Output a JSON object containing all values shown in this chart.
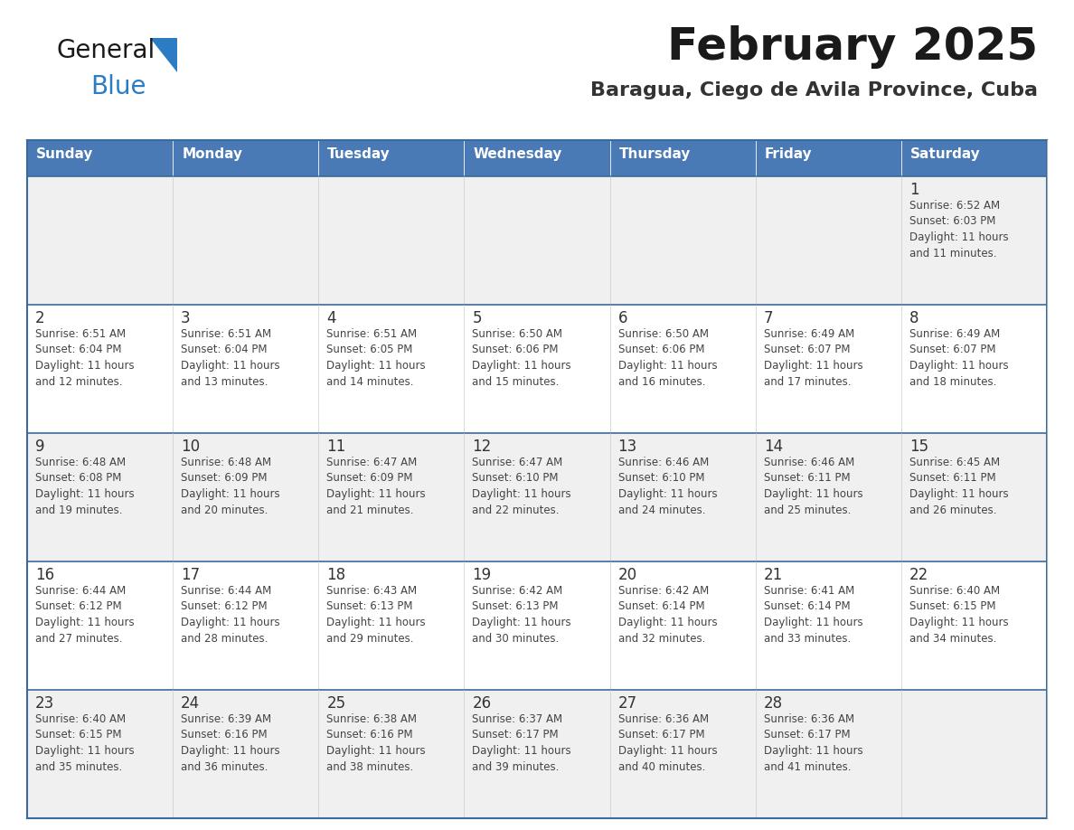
{
  "title": "February 2025",
  "subtitle": "Baragua, Ciego de Avila Province, Cuba",
  "days_of_week": [
    "Sunday",
    "Monday",
    "Tuesday",
    "Wednesday",
    "Thursday",
    "Friday",
    "Saturday"
  ],
  "header_bg": "#4a7ab5",
  "header_text": "#ffffff",
  "cell_bg_odd": "#f0f0f0",
  "cell_bg_even": "#ffffff",
  "divider_color": "#3a6a9a",
  "text_color": "#444444",
  "day_num_color": "#333333",
  "title_color": "#1a1a1a",
  "subtitle_color": "#333333",
  "logo_general_color": "#1a1a1a",
  "logo_blue_color": "#2b7cc2",
  "weeks": [
    [
      {
        "day": null,
        "info": ""
      },
      {
        "day": null,
        "info": ""
      },
      {
        "day": null,
        "info": ""
      },
      {
        "day": null,
        "info": ""
      },
      {
        "day": null,
        "info": ""
      },
      {
        "day": null,
        "info": ""
      },
      {
        "day": 1,
        "info": "Sunrise: 6:52 AM\nSunset: 6:03 PM\nDaylight: 11 hours\nand 11 minutes."
      }
    ],
    [
      {
        "day": 2,
        "info": "Sunrise: 6:51 AM\nSunset: 6:04 PM\nDaylight: 11 hours\nand 12 minutes."
      },
      {
        "day": 3,
        "info": "Sunrise: 6:51 AM\nSunset: 6:04 PM\nDaylight: 11 hours\nand 13 minutes."
      },
      {
        "day": 4,
        "info": "Sunrise: 6:51 AM\nSunset: 6:05 PM\nDaylight: 11 hours\nand 14 minutes."
      },
      {
        "day": 5,
        "info": "Sunrise: 6:50 AM\nSunset: 6:06 PM\nDaylight: 11 hours\nand 15 minutes."
      },
      {
        "day": 6,
        "info": "Sunrise: 6:50 AM\nSunset: 6:06 PM\nDaylight: 11 hours\nand 16 minutes."
      },
      {
        "day": 7,
        "info": "Sunrise: 6:49 AM\nSunset: 6:07 PM\nDaylight: 11 hours\nand 17 minutes."
      },
      {
        "day": 8,
        "info": "Sunrise: 6:49 AM\nSunset: 6:07 PM\nDaylight: 11 hours\nand 18 minutes."
      }
    ],
    [
      {
        "day": 9,
        "info": "Sunrise: 6:48 AM\nSunset: 6:08 PM\nDaylight: 11 hours\nand 19 minutes."
      },
      {
        "day": 10,
        "info": "Sunrise: 6:48 AM\nSunset: 6:09 PM\nDaylight: 11 hours\nand 20 minutes."
      },
      {
        "day": 11,
        "info": "Sunrise: 6:47 AM\nSunset: 6:09 PM\nDaylight: 11 hours\nand 21 minutes."
      },
      {
        "day": 12,
        "info": "Sunrise: 6:47 AM\nSunset: 6:10 PM\nDaylight: 11 hours\nand 22 minutes."
      },
      {
        "day": 13,
        "info": "Sunrise: 6:46 AM\nSunset: 6:10 PM\nDaylight: 11 hours\nand 24 minutes."
      },
      {
        "day": 14,
        "info": "Sunrise: 6:46 AM\nSunset: 6:11 PM\nDaylight: 11 hours\nand 25 minutes."
      },
      {
        "day": 15,
        "info": "Sunrise: 6:45 AM\nSunset: 6:11 PM\nDaylight: 11 hours\nand 26 minutes."
      }
    ],
    [
      {
        "day": 16,
        "info": "Sunrise: 6:44 AM\nSunset: 6:12 PM\nDaylight: 11 hours\nand 27 minutes."
      },
      {
        "day": 17,
        "info": "Sunrise: 6:44 AM\nSunset: 6:12 PM\nDaylight: 11 hours\nand 28 minutes."
      },
      {
        "day": 18,
        "info": "Sunrise: 6:43 AM\nSunset: 6:13 PM\nDaylight: 11 hours\nand 29 minutes."
      },
      {
        "day": 19,
        "info": "Sunrise: 6:42 AM\nSunset: 6:13 PM\nDaylight: 11 hours\nand 30 minutes."
      },
      {
        "day": 20,
        "info": "Sunrise: 6:42 AM\nSunset: 6:14 PM\nDaylight: 11 hours\nand 32 minutes."
      },
      {
        "day": 21,
        "info": "Sunrise: 6:41 AM\nSunset: 6:14 PM\nDaylight: 11 hours\nand 33 minutes."
      },
      {
        "day": 22,
        "info": "Sunrise: 6:40 AM\nSunset: 6:15 PM\nDaylight: 11 hours\nand 34 minutes."
      }
    ],
    [
      {
        "day": 23,
        "info": "Sunrise: 6:40 AM\nSunset: 6:15 PM\nDaylight: 11 hours\nand 35 minutes."
      },
      {
        "day": 24,
        "info": "Sunrise: 6:39 AM\nSunset: 6:16 PM\nDaylight: 11 hours\nand 36 minutes."
      },
      {
        "day": 25,
        "info": "Sunrise: 6:38 AM\nSunset: 6:16 PM\nDaylight: 11 hours\nand 38 minutes."
      },
      {
        "day": 26,
        "info": "Sunrise: 6:37 AM\nSunset: 6:17 PM\nDaylight: 11 hours\nand 39 minutes."
      },
      {
        "day": 27,
        "info": "Sunrise: 6:36 AM\nSunset: 6:17 PM\nDaylight: 11 hours\nand 40 minutes."
      },
      {
        "day": 28,
        "info": "Sunrise: 6:36 AM\nSunset: 6:17 PM\nDaylight: 11 hours\nand 41 minutes."
      },
      {
        "day": null,
        "info": ""
      }
    ]
  ]
}
